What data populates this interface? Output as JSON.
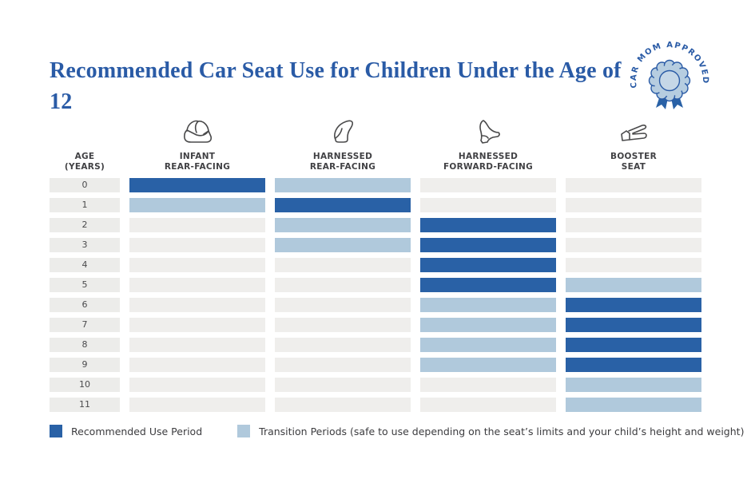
{
  "header": {
    "title": "Recommended Car Seat Use for Children Under the Age of 12",
    "badge_text": "CAR MOM APPROVED"
  },
  "colors": {
    "title_blue": "#2a5ba6",
    "recommended_bar": "#2961a6",
    "transition_bar": "#b0c9dc",
    "empty_cell": "#efeeec",
    "age_cell": "#ececea",
    "badge_fill": "#b6cde0",
    "badge_outline": "#2a5ba6"
  },
  "chart_data": {
    "type": "heatmap",
    "title": "Recommended Car Seat Use for Children Under the Age of 12",
    "age_header_lines": [
      "AGE",
      "(YEARS)"
    ],
    "columns": [
      {
        "icon": "infant-carrier-icon",
        "label_lines": [
          "INFANT",
          "REAR-FACING"
        ]
      },
      {
        "icon": "rear-facing-seat-icon",
        "label_lines": [
          "HARNESSED",
          "REAR-FACING"
        ]
      },
      {
        "icon": "forward-facing-seat-icon",
        "label_lines": [
          "HARNESSED",
          "FORWARD-FACING"
        ]
      },
      {
        "icon": "booster-seat-icon",
        "label_lines": [
          "BOOSTER",
          "SEAT"
        ]
      }
    ],
    "cell_states": {
      "recommended": "#2961a6",
      "transition": "#b0c9dc",
      "none": "#efeeec"
    },
    "rows": [
      {
        "age": "0",
        "cells": [
          "recommended",
          "transition",
          "none",
          "none"
        ]
      },
      {
        "age": "1",
        "cells": [
          "transition",
          "recommended",
          "none",
          "none"
        ]
      },
      {
        "age": "2",
        "cells": [
          "none",
          "transition",
          "recommended",
          "none"
        ]
      },
      {
        "age": "3",
        "cells": [
          "none",
          "transition",
          "recommended",
          "none"
        ]
      },
      {
        "age": "4",
        "cells": [
          "none",
          "none",
          "recommended",
          "none"
        ]
      },
      {
        "age": "5",
        "cells": [
          "none",
          "none",
          "recommended",
          "transition"
        ]
      },
      {
        "age": "6",
        "cells": [
          "none",
          "none",
          "transition",
          "recommended"
        ]
      },
      {
        "age": "7",
        "cells": [
          "none",
          "none",
          "transition",
          "recommended"
        ]
      },
      {
        "age": "8",
        "cells": [
          "none",
          "none",
          "transition",
          "recommended"
        ]
      },
      {
        "age": "9",
        "cells": [
          "none",
          "none",
          "transition",
          "recommended"
        ]
      },
      {
        "age": "10",
        "cells": [
          "none",
          "none",
          "none",
          "transition"
        ]
      },
      {
        "age": "11",
        "cells": [
          "none",
          "none",
          "none",
          "transition"
        ]
      }
    ],
    "legend": [
      {
        "state": "recommended",
        "label": "Recommended Use Period"
      },
      {
        "state": "transition",
        "label": "Transition Periods (safe to use depending on the seat’s limits and your child’s height and weight)"
      }
    ]
  }
}
